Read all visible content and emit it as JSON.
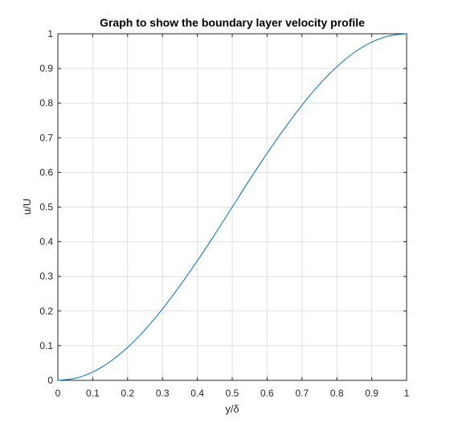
{
  "chart_data": {
    "type": "line",
    "title": "Graph to show the boundary layer velocity profile",
    "xlabel": "y/δ",
    "ylabel": "u/U",
    "xlim": [
      0,
      1
    ],
    "ylim": [
      0,
      1
    ],
    "grid": true,
    "xticks": [
      "0",
      "0.1",
      "0.2",
      "0.3",
      "0.4",
      "0.5",
      "0.6",
      "0.7",
      "0.8",
      "0.9",
      "1"
    ],
    "yticks": [
      "0",
      "0.1",
      "0.2",
      "0.3",
      "0.4",
      "0.5",
      "0.6",
      "0.7",
      "0.8",
      "0.9",
      "1"
    ],
    "line_color": "#0072bd",
    "series": [
      {
        "x": [
          0,
          0.05,
          0.1,
          0.15,
          0.2,
          0.25,
          0.3,
          0.35,
          0.4,
          0.45,
          0.5,
          0.55,
          0.6,
          0.65,
          0.7,
          0.75,
          0.8,
          0.85,
          0.9,
          0.95,
          1.0
        ],
        "y": [
          0,
          0.006,
          0.024,
          0.054,
          0.095,
          0.146,
          0.206,
          0.273,
          0.345,
          0.421,
          0.5,
          0.579,
          0.655,
          0.727,
          0.794,
          0.854,
          0.905,
          0.946,
          0.976,
          0.994,
          1.0
        ]
      }
    ]
  }
}
